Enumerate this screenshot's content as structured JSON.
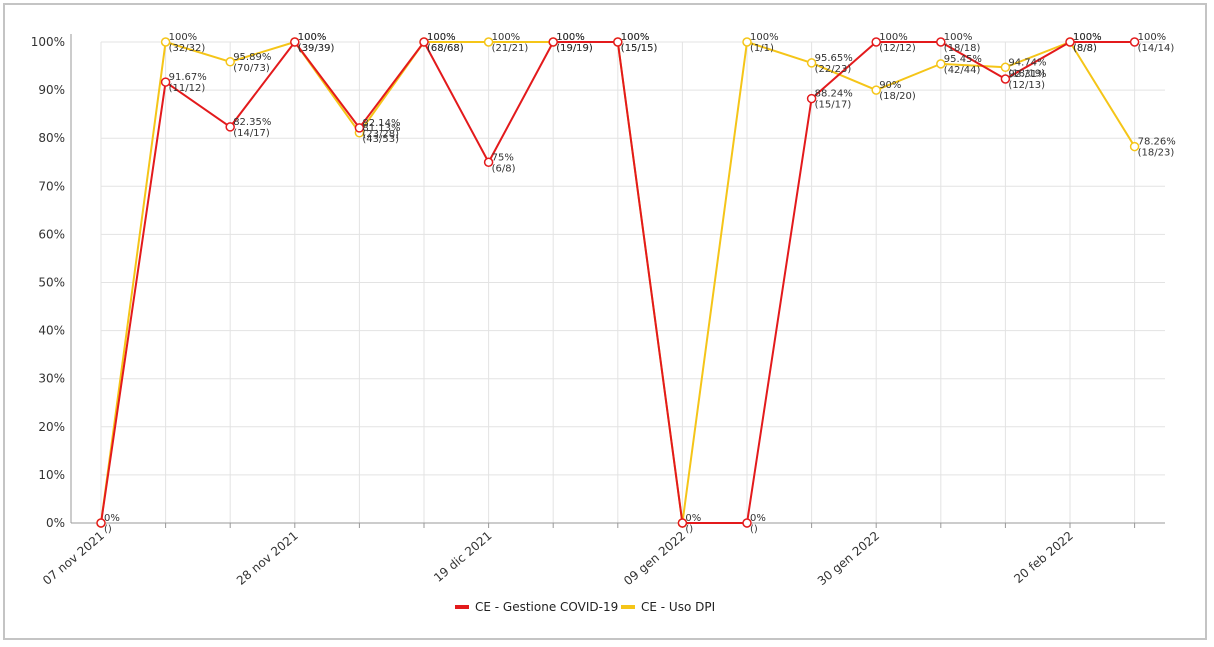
{
  "chart_data": {
    "type": "line",
    "title": "",
    "xlabel": "",
    "ylabel": "",
    "ylim": [
      0,
      100
    ],
    "grid": true,
    "legend_position": "bottom-center",
    "y_ticks": [
      "0%",
      "10%",
      "20%",
      "30%",
      "40%",
      "50%",
      "60%",
      "70%",
      "80%",
      "90%",
      "100%"
    ],
    "x_tick_labels": [
      {
        "label": "07 nov 2021",
        "week": 0
      },
      {
        "label": "28 nov 2021",
        "week": 3
      },
      {
        "label": "19 dic 2021",
        "week": 6
      },
      {
        "label": "09 gen 2022",
        "week": 9
      },
      {
        "label": "30 gen 2022",
        "week": 12
      },
      {
        "label": "20 feb 2022",
        "week": 15
      }
    ],
    "series": [
      {
        "name": "CE - Gestione COVID-19",
        "color": "#e31a1c",
        "points": [
          {
            "week": 0,
            "y": 0,
            "l1": "0%",
            "l2": "()"
          },
          {
            "week": 1,
            "y": 91.67,
            "l1": "91.67%",
            "l2": "(11/12)"
          },
          {
            "week": 2,
            "y": 82.35,
            "l1": "82.35%",
            "l2": "(14/17)"
          },
          {
            "week": 3,
            "y": 100,
            "l1": "100%",
            "l2": "(39/39)"
          },
          {
            "week": 4,
            "y": 82.14,
            "l1": "82.14%",
            "l2": "(23/28)"
          },
          {
            "week": 5,
            "y": 100,
            "l1": "100%",
            "l2": "(68/68)"
          },
          {
            "week": 6,
            "y": 75,
            "l1": "75%",
            "l2": "(6/8)"
          },
          {
            "week": 7,
            "y": 100,
            "l1": "100%",
            "l2": "(19/19)"
          },
          {
            "week": 8,
            "y": 100,
            "l1": "100%",
            "l2": "(15/15)"
          },
          {
            "week": 9,
            "y": 0,
            "l1": "",
            "l2": ""
          },
          {
            "week": 10,
            "y": 0,
            "l1": "0%",
            "l2": "()"
          },
          {
            "week": 11,
            "y": 88.24,
            "l1": "88.24%",
            "l2": "(15/17)"
          },
          {
            "week": 12,
            "y": 100,
            "l1": "100%",
            "l2": "(12/12)"
          },
          {
            "week": 13,
            "y": 100,
            "l1": "100%",
            "l2": "(18/18)"
          },
          {
            "week": 14,
            "y": 92.31,
            "l1": "92.31%",
            "l2": "(12/13)"
          },
          {
            "week": 15,
            "y": 100,
            "l1": "100%",
            "l2": "(8/8)"
          },
          {
            "week": 16,
            "y": 100,
            "l1": "100%",
            "l2": "(14/14)"
          }
        ]
      },
      {
        "name": "CE - Uso DPI",
        "color": "#f5c518",
        "points": [
          {
            "week": 0,
            "y": 0,
            "l1": "",
            "l2": ""
          },
          {
            "week": 1,
            "y": 100,
            "l1": "100%",
            "l2": "(32/32)"
          },
          {
            "week": 2,
            "y": 95.89,
            "l1": "95.89%",
            "l2": "(70/73)"
          },
          {
            "week": 3,
            "y": 100,
            "l1": "100%",
            "l2": "(39/39)"
          },
          {
            "week": 4,
            "y": 81.13,
            "l1": "81.13%",
            "l2": "(43/53)"
          },
          {
            "week": 5,
            "y": 100,
            "l1": "100%",
            "l2": "(68/68)"
          },
          {
            "week": 6,
            "y": 100,
            "l1": "100%",
            "l2": "(21/21)"
          },
          {
            "week": 7,
            "y": 100,
            "l1": "100%",
            "l2": "(19/19)"
          },
          {
            "week": 8,
            "y": 100,
            "l1": "100%",
            "l2": "(15/15)"
          },
          {
            "week": 9,
            "y": 0,
            "l1": "0%",
            "l2": "()"
          },
          {
            "week": 10,
            "y": 100,
            "l1": "100%",
            "l2": "(1/1)"
          },
          {
            "week": 11,
            "y": 95.65,
            "l1": "95.65%",
            "l2": "(22/23)"
          },
          {
            "week": 12,
            "y": 90,
            "l1": "90%",
            "l2": "(18/20)"
          },
          {
            "week": 13,
            "y": 95.45,
            "l1": "95.45%",
            "l2": "(42/44)"
          },
          {
            "week": 14,
            "y": 94.74,
            "l1": "94.74%",
            "l2": "(18/19)"
          },
          {
            "week": 15,
            "y": 100,
            "l1": "100%",
            "l2": "(8/8)"
          },
          {
            "week": 16,
            "y": 78.26,
            "l1": "78.26%",
            "l2": "(18/23)"
          }
        ]
      }
    ]
  }
}
